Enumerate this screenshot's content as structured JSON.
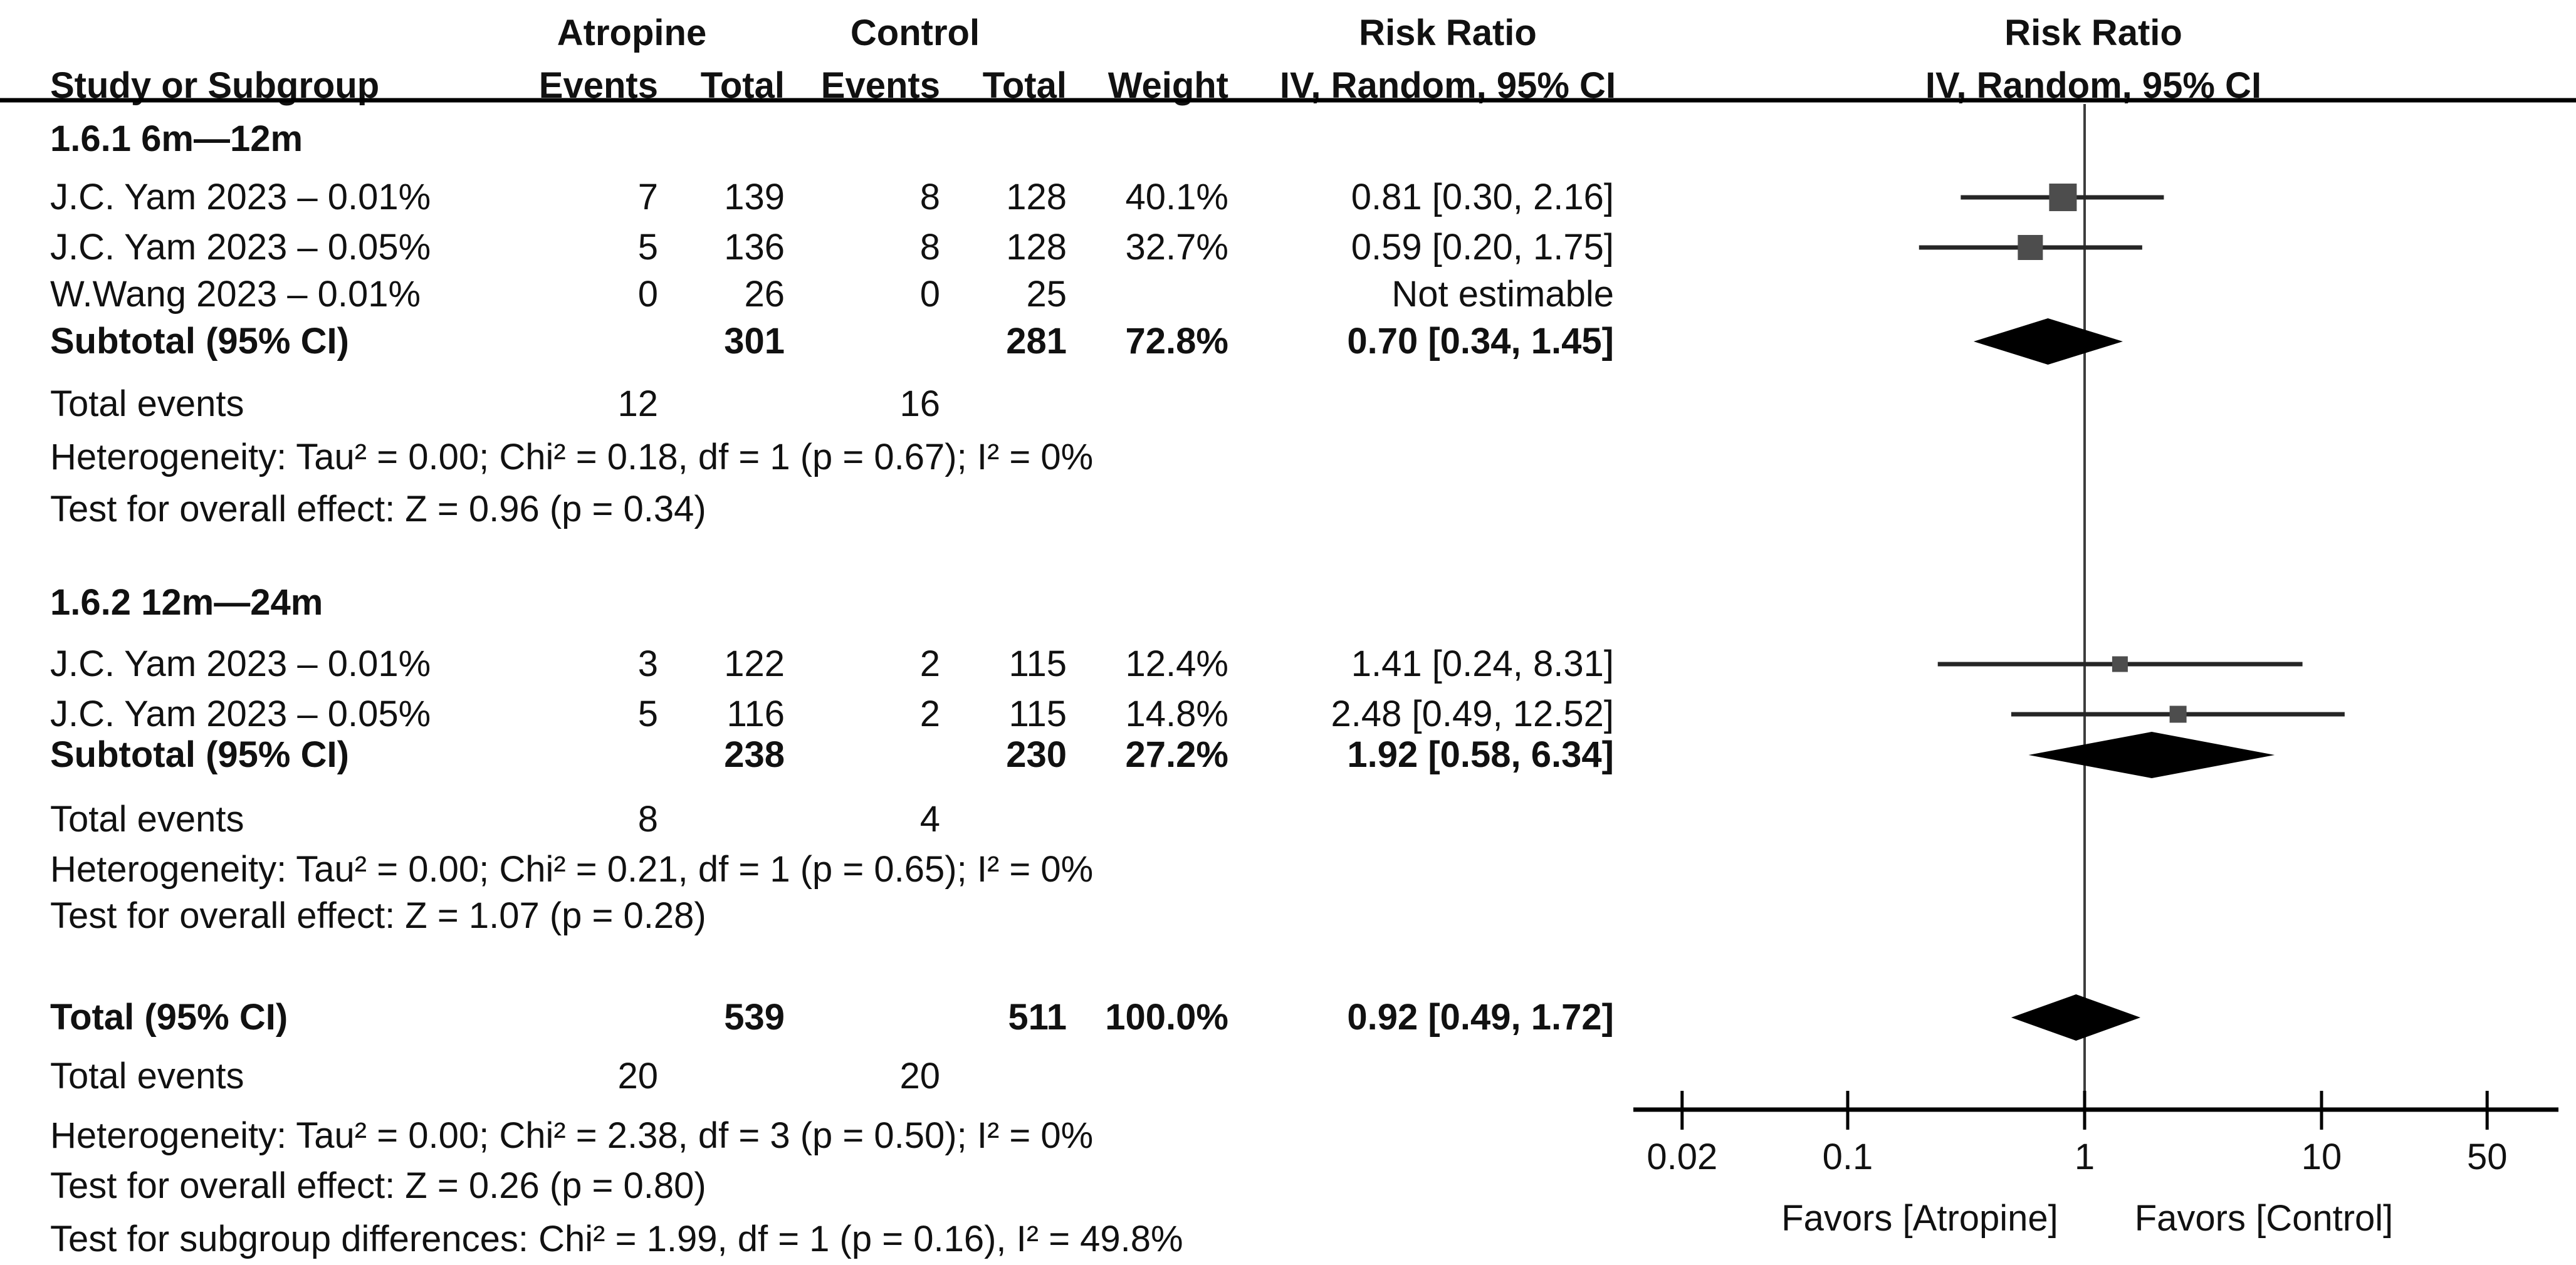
{
  "header": {
    "group_treatment": "Atropine",
    "group_control": "Control",
    "risk_ratio_text_col": "Risk Ratio",
    "risk_ratio_plot_col": "Risk Ratio",
    "method_text_col": "IV, Random, 95% CI",
    "method_plot_col": "IV, Random, 95% CI",
    "study": "Study or Subgroup",
    "events1": "Events",
    "total1": "Total",
    "events2": "Events",
    "total2": "Total",
    "weight": "Weight"
  },
  "rows": [
    {
      "kind": "group",
      "label": "1.6.1 6m—12m"
    },
    {
      "kind": "study",
      "label": "J.C. Yam 2023 – 0.01%",
      "e1": "7",
      "t1": "139",
      "e2": "8",
      "t2": "128",
      "weight": "40.1%",
      "ci": "0.81 [0.30, 2.16]"
    },
    {
      "kind": "study",
      "label": "J.C. Yam 2023 – 0.05%",
      "e1": "5",
      "t1": "136",
      "e2": "8",
      "t2": "128",
      "weight": "32.7%",
      "ci": "0.59 [0.20, 1.75]"
    },
    {
      "kind": "study",
      "label": "W.Wang 2023 – 0.01%",
      "e1": "0",
      "t1": "26",
      "e2": "0",
      "t2": "25",
      "weight": "",
      "ci": "Not estimable"
    },
    {
      "kind": "subtotal",
      "label": "Subtotal (95% CI)",
      "t1": "301",
      "t2": "281",
      "weight": "72.8%",
      "ci": "0.70 [0.34, 1.45]"
    },
    {
      "kind": "events",
      "label": "Total events",
      "e1": "12",
      "e2": "16"
    },
    {
      "kind": "stats",
      "label": "Heterogeneity: Tau² = 0.00; Chi² = 0.18, df = 1 (p = 0.67); I² = 0%"
    },
    {
      "kind": "stats",
      "label": "Test for overall effect: Z = 0.96 (p = 0.34)"
    },
    {
      "kind": "group",
      "label": "1.6.2 12m—24m"
    },
    {
      "kind": "study",
      "label": "J.C. Yam 2023 – 0.01%",
      "e1": "3",
      "t1": "122",
      "e2": "2",
      "t2": "115",
      "weight": "12.4%",
      "ci": "1.41 [0.24, 8.31]"
    },
    {
      "kind": "study",
      "label": "J.C. Yam 2023 – 0.05%",
      "e1": "5",
      "t1": "116",
      "e2": "2",
      "t2": "115",
      "weight": "14.8%",
      "ci": "2.48 [0.49, 12.52]"
    },
    {
      "kind": "subtotal",
      "label": "Subtotal (95% CI)",
      "t1": "238",
      "t2": "230",
      "weight": "27.2%",
      "ci": "1.92 [0.58, 6.34]"
    },
    {
      "kind": "events",
      "label": "Total events",
      "e1": "8",
      "e2": "4"
    },
    {
      "kind": "stats",
      "label": "Heterogeneity: Tau² = 0.00; Chi² = 0.21, df = 1 (p = 0.65); I² = 0%"
    },
    {
      "kind": "stats",
      "label": "Test for overall effect: Z = 1.07 (p = 0.28)"
    },
    {
      "kind": "total",
      "label": "Total (95% CI)",
      "t1": "539",
      "t2": "511",
      "weight": "100.0%",
      "ci": "0.92 [0.49, 1.72]"
    },
    {
      "kind": "events",
      "label": "Total events",
      "e1": "20",
      "e2": "20"
    },
    {
      "kind": "stats",
      "label": "Heterogeneity: Tau² = 0.00; Chi² = 2.38, df = 3 (p = 0.50); I² = 0%"
    },
    {
      "kind": "stats",
      "label": "Test for overall effect: Z = 0.26 (p = 0.80)"
    },
    {
      "kind": "stats",
      "label": "Test for subgroup differences: Chi² = 1.99, df = 1 (p = 0.16), I² = 49.8%"
    }
  ],
  "chart_data": {
    "type": "forest",
    "effect_measure": "Risk Ratio",
    "model": "IV, Random, 95% CI",
    "x_scale": "log10",
    "x_ticks": [
      0.02,
      0.1,
      1,
      10,
      50
    ],
    "x_tick_labels": [
      "0.02",
      "0.1",
      "1",
      "10",
      "50"
    ],
    "x_range": [
      0.02,
      50
    ],
    "null_line": 1,
    "xlabel_left": "Favors [Atropine]",
    "xlabel_right": "Favors [Control]",
    "points": [
      {
        "row": 1,
        "type": "square",
        "label": "J.C. Yam 2023 – 0.01% (6m—12m)",
        "rr": 0.81,
        "lo": 0.3,
        "hi": 2.16,
        "weight": 40.1
      },
      {
        "row": 2,
        "type": "square",
        "label": "J.C. Yam 2023 – 0.05% (6m—12m)",
        "rr": 0.59,
        "lo": 0.2,
        "hi": 1.75,
        "weight": 32.7
      },
      {
        "row": 4,
        "type": "diamond",
        "label": "Subtotal 6m—12m",
        "rr": 0.7,
        "lo": 0.34,
        "hi": 1.45
      },
      {
        "row": 9,
        "type": "square",
        "label": "J.C. Yam 2023 – 0.01% (12m—24m)",
        "rr": 1.41,
        "lo": 0.24,
        "hi": 8.31,
        "weight": 12.4
      },
      {
        "row": 10,
        "type": "square",
        "label": "J.C. Yam 2023 – 0.05% (12m—24m)",
        "rr": 2.48,
        "lo": 0.49,
        "hi": 12.52,
        "weight": 14.8
      },
      {
        "row": 11,
        "type": "diamond",
        "label": "Subtotal 12m—24m",
        "rr": 1.92,
        "lo": 0.58,
        "hi": 6.34
      },
      {
        "row": 15,
        "type": "diamond",
        "label": "Total",
        "rr": 0.92,
        "lo": 0.49,
        "hi": 1.72
      }
    ]
  },
  "colors": {
    "text": "#111111",
    "square": "#4d4d4d",
    "diamond": "#000000",
    "ci_line": "#262626",
    "null_line": "#3d3d3d",
    "axis_line": "#000000",
    "header_rule": "#000000"
  }
}
